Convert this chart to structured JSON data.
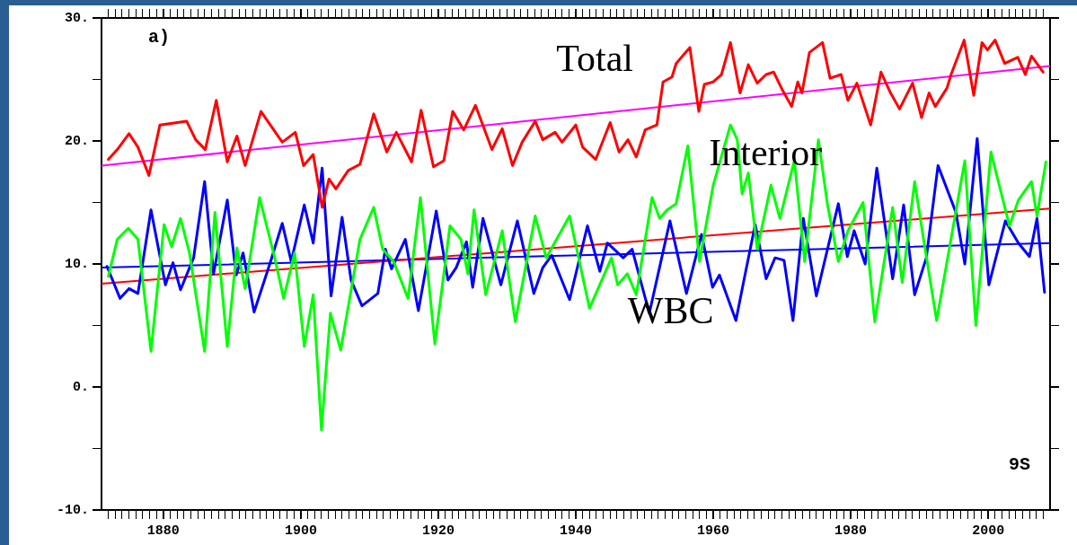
{
  "chart_data": {
    "type": "line",
    "annotations": [
      "a)",
      "9S"
    ],
    "xlim": [
      1871,
      2009
    ],
    "ylim": [
      -10,
      30
    ],
    "yticks": [
      {
        "value": -10,
        "label": "-10."
      },
      {
        "value": -5,
        "label": null
      },
      {
        "value": 0,
        "label": "0."
      },
      {
        "value": 5,
        "label": null
      },
      {
        "value": 10,
        "label": "10."
      },
      {
        "value": 15,
        "label": null
      },
      {
        "value": 20,
        "label": "20."
      },
      {
        "value": 25,
        "label": null
      },
      {
        "value": 30,
        "label": "30."
      }
    ],
    "xticks": [
      {
        "value": 1872,
        "label": null
      },
      {
        "value": 1873,
        "label": null
      },
      {
        "value": 1874,
        "label": null
      },
      {
        "value": 1875,
        "label": null
      },
      {
        "value": 1876,
        "label": null
      },
      {
        "value": 1877,
        "label": null
      },
      {
        "value": 1878,
        "label": null
      },
      {
        "value": 1879,
        "label": null
      },
      1880,
      {
        "value": 1881,
        "label": null
      },
      {
        "value": 1882,
        "label": null
      },
      {
        "value": 1883,
        "label": null
      },
      {
        "value": 1884,
        "label": null
      },
      {
        "value": 1885,
        "label": null
      },
      {
        "value": 1886,
        "label": null
      },
      {
        "value": 1887,
        "label": null
      },
      {
        "value": 1888,
        "label": null
      },
      {
        "value": 1889,
        "label": null
      },
      {
        "value": 1890,
        "label": null
      },
      {
        "value": 1891,
        "label": null
      },
      {
        "value": 1892,
        "label": null
      },
      {
        "value": 1893,
        "label": null
      },
      {
        "value": 1894,
        "label": null
      },
      {
        "value": 1895,
        "label": null
      },
      {
        "value": 1896,
        "label": null
      },
      {
        "value": 1897,
        "label": null
      },
      {
        "value": 1898,
        "label": null
      },
      {
        "value": 1899,
        "label": null
      },
      1900,
      {
        "value": 1901,
        "label": null
      },
      {
        "value": 1902,
        "label": null
      },
      {
        "value": 1903,
        "label": null
      },
      {
        "value": 1904,
        "label": null
      },
      {
        "value": 1905,
        "label": null
      },
      {
        "value": 1906,
        "label": null
      },
      {
        "value": 1907,
        "label": null
      },
      {
        "value": 1908,
        "label": null
      },
      {
        "value": 1909,
        "label": null
      },
      {
        "value": 1910,
        "label": null
      },
      {
        "value": 1911,
        "label": null
      },
      {
        "value": 1912,
        "label": null
      },
      {
        "value": 1913,
        "label": null
      },
      {
        "value": 1914,
        "label": null
      },
      {
        "value": 1915,
        "label": null
      },
      {
        "value": 1916,
        "label": null
      },
      {
        "value": 1917,
        "label": null
      },
      {
        "value": 1918,
        "label": null
      },
      {
        "value": 1919,
        "label": null
      },
      1920,
      {
        "value": 1921,
        "label": null
      },
      {
        "value": 1922,
        "label": null
      },
      {
        "value": 1923,
        "label": null
      },
      {
        "value": 1924,
        "label": null
      },
      {
        "value": 1925,
        "label": null
      },
      {
        "value": 1926,
        "label": null
      },
      {
        "value": 1927,
        "label": null
      },
      {
        "value": 1928,
        "label": null
      },
      {
        "value": 1929,
        "label": null
      },
      {
        "value": 1930,
        "label": null
      },
      {
        "value": 1931,
        "label": null
      },
      {
        "value": 1932,
        "label": null
      },
      {
        "value": 1933,
        "label": null
      },
      {
        "value": 1934,
        "label": null
      },
      {
        "value": 1935,
        "label": null
      },
      {
        "value": 1936,
        "label": null
      },
      {
        "value": 1937,
        "label": null
      },
      {
        "value": 1938,
        "label": null
      },
      {
        "value": 1939,
        "label": null
      },
      1940,
      {
        "value": 1941,
        "label": null
      },
      {
        "value": 1942,
        "label": null
      },
      {
        "value": 1943,
        "label": null
      },
      {
        "value": 1944,
        "label": null
      },
      {
        "value": 1945,
        "label": null
      },
      {
        "value": 1946,
        "label": null
      },
      {
        "value": 1947,
        "label": null
      },
      {
        "value": 1948,
        "label": null
      },
      {
        "value": 1949,
        "label": null
      },
      {
        "value": 1950,
        "label": null
      },
      {
        "value": 1951,
        "label": null
      },
      {
        "value": 1952,
        "label": null
      },
      {
        "value": 1953,
        "label": null
      },
      {
        "value": 1954,
        "label": null
      },
      {
        "value": 1955,
        "label": null
      },
      {
        "value": 1956,
        "label": null
      },
      {
        "value": 1957,
        "label": null
      },
      {
        "value": 1958,
        "label": null
      },
      {
        "value": 1959,
        "label": null
      },
      1960,
      {
        "value": 1961,
        "label": null
      },
      {
        "value": 1962,
        "label": null
      },
      {
        "value": 1963,
        "label": null
      },
      {
        "value": 1964,
        "label": null
      },
      {
        "value": 1965,
        "label": null
      },
      {
        "value": 1966,
        "label": null
      },
      {
        "value": 1967,
        "label": null
      },
      {
        "value": 1968,
        "label": null
      },
      {
        "value": 1969,
        "label": null
      },
      {
        "value": 1970,
        "label": null
      },
      {
        "value": 1971,
        "label": null
      },
      {
        "value": 1972,
        "label": null
      },
      {
        "value": 1973,
        "label": null
      },
      {
        "value": 1974,
        "label": null
      },
      {
        "value": 1975,
        "label": null
      },
      {
        "value": 1976,
        "label": null
      },
      {
        "value": 1977,
        "label": null
      },
      {
        "value": 1978,
        "label": null
      },
      {
        "value": 1979,
        "label": null
      },
      1980,
      {
        "value": 1981,
        "label": null
      },
      {
        "value": 1982,
        "label": null
      },
      {
        "value": 1983,
        "label": null
      },
      {
        "value": 1984,
        "label": null
      },
      {
        "value": 1985,
        "label": null
      },
      {
        "value": 1986,
        "label": null
      },
      {
        "value": 1987,
        "label": null
      },
      {
        "value": 1988,
        "label": null
      },
      {
        "value": 1989,
        "label": null
      },
      {
        "value": 1990,
        "label": null
      },
      {
        "value": 1991,
        "label": null
      },
      {
        "value": 1992,
        "label": null
      },
      {
        "value": 1993,
        "label": null
      },
      {
        "value": 1994,
        "label": null
      },
      {
        "value": 1995,
        "label": null
      },
      {
        "value": 1996,
        "label": null
      },
      {
        "value": 1997,
        "label": null
      },
      {
        "value": 1998,
        "label": null
      },
      {
        "value": 1999,
        "label": null
      },
      2000,
      {
        "value": 2001,
        "label": null
      },
      {
        "value": 2002,
        "label": null
      },
      {
        "value": 2003,
        "label": null
      },
      {
        "value": 2004,
        "label": null
      },
      {
        "value": 2005,
        "label": null
      },
      {
        "value": 2006,
        "label": null
      },
      {
        "value": 2007,
        "label": null
      },
      {
        "value": 2008,
        "label": null
      }
    ],
    "grid": false,
    "legend": false,
    "marker": "none",
    "line_style": "solid",
    "series": [
      {
        "name": "Total",
        "color": "#ff0000",
        "type": "line",
        "x": [
          1872.0,
          1873.3,
          1875.0,
          1876.3,
          1877.9,
          1879.5,
          1883.4,
          1884.7,
          1886.1,
          1887.7,
          1889.3,
          1890.7,
          1891.9,
          1894.2,
          1897.3,
          1899.2,
          1900.4,
          1901.8,
          1903.1,
          1904.1,
          1905.1,
          1906.9,
          1908.6,
          1910.6,
          1912.5,
          1913.9,
          1916.1,
          1917.5,
          1919.3,
          1920.8,
          1922.1,
          1923.7,
          1925.4,
          1927.8,
          1929.3,
          1930.8,
          1932.2,
          1934.1,
          1935.2,
          1937.0,
          1938.0,
          1940.0,
          1941.0,
          1942.9,
          1945.0,
          1946.3,
          1947.6,
          1948.8,
          1950.1,
          1951.8,
          1952.7,
          1954.0,
          1954.6,
          1956.6,
          1957.9,
          1958.7,
          1960.0,
          1961.2,
          1962.5,
          1963.9,
          1965.1,
          1966.4,
          1967.7,
          1968.8,
          1970.1,
          1971.4,
          1972.3,
          1972.9,
          1974.0,
          1975.9,
          1977.0,
          1978.6,
          1979.6,
          1980.9,
          1982.9,
          1984.4,
          1985.8,
          1987.1,
          1989.0,
          1990.3,
          1991.4,
          1992.3,
          1994.0,
          1994.6,
          1996.5,
          1997.9,
          1999.1,
          1999.9,
          2001.0,
          2002.4,
          2004.3,
          2005.4,
          2006.3,
          2008.0
        ],
        "values": [
          18.5,
          19.3,
          20.6,
          19.5,
          17.2,
          21.3,
          21.6,
          20.1,
          19.3,
          23.3,
          18.3,
          20.4,
          18.0,
          22.4,
          19.9,
          20.7,
          18.0,
          18.9,
          14.6,
          16.9,
          16.1,
          17.6,
          18.1,
          22.2,
          19.1,
          20.7,
          18.3,
          22.5,
          17.9,
          18.4,
          22.4,
          20.9,
          22.9,
          19.3,
          21.0,
          18.0,
          19.9,
          21.6,
          20.1,
          20.7,
          19.9,
          21.3,
          19.5,
          18.5,
          21.5,
          19.1,
          20.1,
          18.7,
          20.9,
          21.3,
          24.8,
          25.2,
          26.3,
          27.6,
          22.4,
          24.6,
          24.8,
          25.4,
          28.0,
          23.9,
          26.2,
          24.7,
          25.4,
          25.6,
          24.1,
          22.8,
          24.8,
          23.9,
          27.2,
          28.0,
          25.1,
          25.4,
          23.3,
          24.7,
          21.3,
          25.6,
          23.9,
          22.6,
          24.7,
          21.9,
          23.9,
          22.8,
          24.3,
          25.4,
          28.2,
          23.7,
          28.0,
          27.4,
          28.2,
          26.3,
          26.8,
          25.4,
          26.9,
          25.6
        ]
      },
      {
        "name": "Interior",
        "color": "#00ff00",
        "type": "line",
        "x": [
          1872.0,
          1873.3,
          1874.9,
          1876.3,
          1878.2,
          1880.1,
          1881.2,
          1882.5,
          1883.8,
          1886.0,
          1887.5,
          1889.3,
          1890.7,
          1891.9,
          1894.0,
          1896.2,
          1897.5,
          1899.1,
          1900.5,
          1901.8,
          1903.0,
          1904.3,
          1905.8,
          1908.6,
          1910.6,
          1911.9,
          1913.5,
          1915.6,
          1917.4,
          1919.5,
          1921.7,
          1923.3,
          1924.3,
          1925.2,
          1926.9,
          1929.3,
          1931.2,
          1934.1,
          1935.7,
          1939.1,
          1942.0,
          1945.2,
          1946.1,
          1947.5,
          1948.8,
          1951.1,
          1952.2,
          1953.3,
          1954.6,
          1956.3,
          1958.0,
          1960.0,
          1962.5,
          1963.5,
          1964.2,
          1965.1,
          1966.4,
          1968.4,
          1969.7,
          1971.8,
          1973.3,
          1975.3,
          1976.6,
          1978.2,
          1979.6,
          1981.8,
          1983.5,
          1986.1,
          1987.5,
          1989.3,
          1990.6,
          1992.5,
          1996.6,
          1998.2,
          2000.4,
          2003.1,
          2004.4,
          2006.3,
          2007.1,
          2008.4
        ],
        "values": [
          9.0,
          12.0,
          12.9,
          12.0,
          2.9,
          13.2,
          11.4,
          13.7,
          10.9,
          2.9,
          14.2,
          3.3,
          11.3,
          8.0,
          15.4,
          10.5,
          7.2,
          10.9,
          3.3,
          7.5,
          -3.5,
          6.0,
          3.0,
          12.0,
          14.6,
          11.2,
          10.2,
          7.2,
          15.4,
          3.5,
          13.1,
          12.0,
          9.2,
          14.4,
          7.5,
          12.7,
          5.3,
          13.9,
          10.5,
          13.9,
          6.4,
          10.5,
          8.3,
          9.2,
          7.5,
          15.4,
          13.7,
          14.4,
          14.9,
          19.6,
          10.2,
          16.4,
          21.3,
          20.1,
          15.7,
          17.4,
          11.2,
          16.4,
          13.7,
          18.4,
          10.2,
          20.1,
          14.9,
          10.2,
          12.7,
          15.0,
          5.3,
          14.6,
          8.5,
          16.7,
          12.0,
          5.4,
          18.4,
          5.0,
          19.1,
          13.1,
          15.2,
          16.7,
          13.9,
          18.3
        ]
      },
      {
        "name": "WBC",
        "color": "#0000ff",
        "type": "line",
        "x": [
          1871.8,
          1873.7,
          1875.0,
          1876.3,
          1878.2,
          1880.3,
          1881.4,
          1882.5,
          1884.4,
          1886.0,
          1887.3,
          1889.3,
          1890.6,
          1891.6,
          1893.2,
          1895.6,
          1897.3,
          1898.6,
          1900.5,
          1901.8,
          1903.1,
          1904.4,
          1906.0,
          1907.3,
          1908.9,
          1911.2,
          1912.3,
          1913.2,
          1915.2,
          1917.1,
          1919.7,
          1921.4,
          1922.6,
          1924.1,
          1925.0,
          1926.5,
          1929.1,
          1931.5,
          1933.9,
          1935.2,
          1936.5,
          1939.1,
          1941.7,
          1943.5,
          1944.6,
          1946.9,
          1948.2,
          1950.7,
          1953.7,
          1956.1,
          1958.3,
          1959.9,
          1960.9,
          1963.3,
          1964.4,
          1966.1,
          1967.7,
          1969.0,
          1970.3,
          1971.6,
          1973.1,
          1975.0,
          1978.2,
          1979.5,
          1980.5,
          1982.1,
          1983.8,
          1986.1,
          1987.7,
          1989.3,
          1991.0,
          1992.7,
          1995.3,
          1996.6,
          1998.4,
          2000.1,
          2002.5,
          2004.4,
          2006.0,
          2007.1,
          2008.2
        ],
        "values": [
          9.8,
          7.2,
          8.0,
          7.6,
          14.4,
          8.3,
          10.1,
          7.9,
          10.5,
          16.7,
          9.2,
          15.2,
          9.1,
          10.9,
          6.1,
          10.2,
          13.3,
          10.2,
          14.8,
          11.7,
          17.8,
          7.4,
          13.8,
          8.7,
          6.6,
          7.6,
          11.2,
          9.6,
          12.0,
          6.2,
          14.3,
          8.7,
          9.7,
          11.8,
          8.1,
          13.7,
          8.3,
          13.5,
          7.6,
          9.7,
          10.7,
          7.1,
          13.1,
          9.4,
          11.7,
          10.5,
          11.2,
          6.0,
          13.5,
          7.6,
          12.4,
          8.1,
          9.1,
          5.4,
          8.5,
          13.2,
          8.8,
          10.5,
          10.3,
          5.4,
          13.7,
          7.4,
          14.9,
          10.6,
          12.7,
          10.0,
          17.8,
          8.8,
          14.8,
          7.5,
          10.5,
          18.0,
          14.2,
          10.0,
          20.2,
          8.3,
          13.5,
          11.7,
          10.6,
          13.7,
          7.7
        ]
      },
      {
        "color": "#ff00ff",
        "type": "line",
        "x": [
          1871,
          2009
        ],
        "values": [
          18.0,
          26.1
        ]
      },
      {
        "color": "#ff0000",
        "type": "line",
        "x": [
          1871,
          2009
        ],
        "values": [
          8.4,
          14.5
        ]
      },
      {
        "color": "#0000ff",
        "type": "line",
        "x": [
          1871,
          2009
        ],
        "values": [
          9.7,
          11.7
        ]
      }
    ]
  }
}
